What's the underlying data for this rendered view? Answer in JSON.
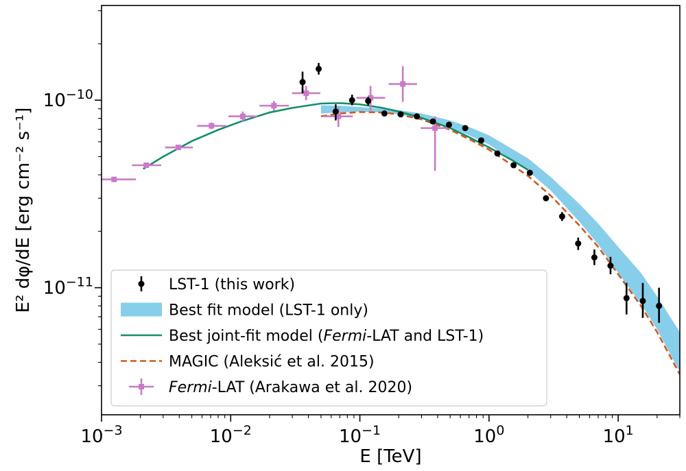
{
  "chart_data": {
    "type": "scatter",
    "x_scale": "log",
    "y_scale": "log",
    "xlim": [
      0.001,
      30
    ],
    "ylim": [
      2.1e-12,
      3.2e-10
    ],
    "xlabel": "E [TeV]",
    "ylabel": "E² dφ/dE [erg cm⁻² s⁻¹]",
    "x_ticks": [
      {
        "value": 0.001,
        "base": "10",
        "exp": "−3"
      },
      {
        "value": 0.01,
        "base": "10",
        "exp": "−2"
      },
      {
        "value": 0.1,
        "base": "10",
        "exp": "−1"
      },
      {
        "value": 1,
        "base": "10",
        "exp": "0"
      },
      {
        "value": 10,
        "base": "10",
        "exp": "1"
      }
    ],
    "y_ticks": [
      {
        "value": 1e-11,
        "base": "10",
        "exp": "−11"
      },
      {
        "value": 1e-10,
        "base": "10",
        "exp": "−10"
      }
    ],
    "grid": false,
    "legend_position": "bottom-left",
    "legend": [
      {
        "key": "lst1",
        "parts": [
          {
            "text": "LST-1 (this work)",
            "italic": false
          }
        ]
      },
      {
        "key": "band",
        "parts": [
          {
            "text": "Best fit model (LST-1 only)",
            "italic": false
          }
        ]
      },
      {
        "key": "joint",
        "parts": [
          {
            "text": "Best joint-fit model (",
            "italic": false
          },
          {
            "text": "Fermi",
            "italic": true
          },
          {
            "text": "-LAT and LST-1)",
            "italic": false
          }
        ]
      },
      {
        "key": "magic",
        "parts": [
          {
            "text": "MAGIC (Aleksić et al. 2015)",
            "italic": false
          }
        ]
      },
      {
        "key": "fermi",
        "parts": [
          {
            "text": "Fermi",
            "italic": true
          },
          {
            "text": "-LAT (Arakawa et al. 2020)",
            "italic": false
          }
        ]
      }
    ],
    "colors": {
      "lst1": "#000000",
      "band": "#87ceeb",
      "joint": "#138d68",
      "magic": "#d05a1f",
      "fermi": "#c97bc7"
    },
    "series": [
      {
        "key": "lst1",
        "type": "errorbar",
        "points": [
          {
            "x": 0.036,
            "y": 1.25e-10,
            "ylo": 1.09e-10,
            "yhi": 1.42e-10
          },
          {
            "x": 0.048,
            "y": 1.47e-10,
            "ylo": 1.37e-10,
            "yhi": 1.58e-10
          },
          {
            "x": 0.065,
            "y": 8.7e-11,
            "ylo": 7.8e-11,
            "yhi": 9.5e-11
          },
          {
            "x": 0.087,
            "y": 1e-10,
            "ylo": 9.4e-11,
            "yhi": 1.07e-10
          },
          {
            "x": 0.116,
            "y": 9.9e-11,
            "ylo": 9.4e-11,
            "yhi": 1.04e-10
          },
          {
            "x": 0.155,
            "y": 8.5e-11,
            "ylo": 8.3e-11,
            "yhi": 8.7e-11
          },
          {
            "x": 0.207,
            "y": 8.4e-11,
            "ylo": 8.25e-11,
            "yhi": 8.55e-11
          },
          {
            "x": 0.276,
            "y": 8.2e-11,
            "ylo": 8.05e-11,
            "yhi": 8.35e-11
          },
          {
            "x": 0.368,
            "y": 7.7e-11,
            "ylo": 7.55e-11,
            "yhi": 7.85e-11
          },
          {
            "x": 0.49,
            "y": 7.4e-11,
            "ylo": 7.25e-11,
            "yhi": 7.55e-11
          },
          {
            "x": 0.654,
            "y": 7.1e-11,
            "ylo": 6.95e-11,
            "yhi": 7.25e-11
          },
          {
            "x": 0.87,
            "y": 6.1e-11,
            "ylo": 5.97e-11,
            "yhi": 6.23e-11
          },
          {
            "x": 1.16,
            "y": 5.2e-11,
            "ylo": 5.07e-11,
            "yhi": 5.33e-11
          },
          {
            "x": 1.55,
            "y": 4.5e-11,
            "ylo": 4.38e-11,
            "yhi": 4.62e-11
          },
          {
            "x": 2.07,
            "y": 4.1e-11,
            "ylo": 3.98e-11,
            "yhi": 4.22e-11
          },
          {
            "x": 2.76,
            "y": 3e-11,
            "ylo": 2.9e-11,
            "yhi": 3.1e-11
          },
          {
            "x": 3.68,
            "y": 2.4e-11,
            "ylo": 2.27e-11,
            "yhi": 2.53e-11
          },
          {
            "x": 4.9,
            "y": 1.72e-11,
            "ylo": 1.59e-11,
            "yhi": 1.85e-11
          },
          {
            "x": 6.54,
            "y": 1.45e-11,
            "ylo": 1.32e-11,
            "yhi": 1.6e-11
          },
          {
            "x": 8.72,
            "y": 1.31e-11,
            "ylo": 1.18e-11,
            "yhi": 1.46e-11
          },
          {
            "x": 11.6,
            "y": 8.8e-12,
            "ylo": 7.2e-12,
            "yhi": 1.06e-11
          },
          {
            "x": 15.5,
            "y": 8.5e-12,
            "ylo": 6.9e-12,
            "yhi": 1.06e-11
          },
          {
            "x": 20.7,
            "y": 8e-12,
            "ylo": 6.5e-12,
            "yhi": 1e-11
          }
        ]
      },
      {
        "key": "fermi",
        "type": "errorbar-xy",
        "points": [
          {
            "x": 0.00125,
            "y": 3.78e-11,
            "xlo": 0.001,
            "xhi": 0.00185,
            "ylo": 3.7e-11,
            "yhi": 3.86e-11
          },
          {
            "x": 0.00222,
            "y": 4.5e-11,
            "xlo": 0.00172,
            "xhi": 0.0029,
            "ylo": 4.38e-11,
            "yhi": 4.62e-11
          },
          {
            "x": 0.00393,
            "y": 5.6e-11,
            "xlo": 0.0031,
            "xhi": 0.0051,
            "ylo": 5.45e-11,
            "yhi": 5.75e-11
          },
          {
            "x": 0.0071,
            "y": 7.3e-11,
            "xlo": 0.0055,
            "xhi": 0.0092,
            "ylo": 7e-11,
            "yhi": 7.6e-11
          },
          {
            "x": 0.0124,
            "y": 8.2e-11,
            "xlo": 0.0096,
            "xhi": 0.016,
            "ylo": 7.7e-11,
            "yhi": 8.7e-11
          },
          {
            "x": 0.0216,
            "y": 9.35e-11,
            "xlo": 0.0167,
            "xhi": 0.0282,
            "ylo": 8.8e-11,
            "yhi": 9.9e-11
          },
          {
            "x": 0.0384,
            "y": 1.09e-10,
            "xlo": 0.0298,
            "xhi": 0.0495,
            "ylo": 1e-10,
            "yhi": 1.19e-10
          },
          {
            "x": 0.0682,
            "y": 8.2e-11,
            "xlo": 0.053,
            "xhi": 0.088,
            "ylo": 7.2e-11,
            "yhi": 9.2e-11
          },
          {
            "x": 0.121,
            "y": 1.03e-10,
            "xlo": 0.094,
            "xhi": 0.157,
            "ylo": 8.8e-11,
            "yhi": 1.19e-10
          },
          {
            "x": 0.215,
            "y": 1.22e-10,
            "xlo": 0.167,
            "xhi": 0.277,
            "ylo": 9.8e-11,
            "yhi": 1.52e-10
          },
          {
            "x": 0.382,
            "y": 7.1e-11,
            "xlo": 0.296,
            "xhi": 0.492,
            "ylo": 4.2e-11,
            "yhi": 8.2e-11
          }
        ]
      },
      {
        "key": "joint",
        "type": "line",
        "x": [
          0.0021,
          0.003,
          0.005,
          0.008,
          0.012,
          0.02,
          0.03,
          0.05,
          0.07,
          0.1,
          0.15,
          0.2,
          0.3,
          0.5,
          0.7,
          1.0,
          1.5,
          2.0
        ],
        "y": [
          4.3e-11,
          5e-11,
          6.05e-11,
          6.95e-11,
          7.7e-11,
          8.6e-11,
          9.1e-11,
          9.6e-11,
          9.65e-11,
          9.5e-11,
          9.1e-11,
          8.7e-11,
          8.05e-11,
          7.1e-11,
          6.35e-11,
          5.6e-11,
          4.8e-11,
          4.25e-11
        ]
      },
      {
        "key": "magic",
        "type": "dashed-line",
        "x": [
          0.05,
          0.07,
          0.1,
          0.15,
          0.2,
          0.3,
          0.5,
          0.7,
          1.0,
          2.0,
          3.0,
          5.0,
          7.0,
          10.0,
          15.0,
          20.0,
          30.0
        ],
        "y": [
          8.2e-11,
          8.5e-11,
          8.65e-11,
          8.6e-11,
          8.4e-11,
          7.9e-11,
          6.95e-11,
          6.2e-11,
          5.45e-11,
          3.95e-11,
          3.1e-11,
          2.15e-11,
          1.65e-11,
          1.18e-11,
          8e-12,
          5.8e-12,
          3.45e-12
        ]
      },
      {
        "key": "band",
        "type": "band",
        "x": [
          0.05,
          0.07,
          0.1,
          0.15,
          0.2,
          0.3,
          0.5,
          0.7,
          1.0,
          2.0,
          3.0,
          5.0,
          7.0,
          10.0,
          15.0,
          20.0,
          30.0
        ],
        "lower": [
          8.5e-11,
          8.6e-11,
          8.7e-11,
          8.6e-11,
          8.4e-11,
          8e-11,
          7.15e-11,
          6.5e-11,
          5.8e-11,
          4.2e-11,
          3.3e-11,
          2.25e-11,
          1.7e-11,
          1.2e-11,
          8.2e-12,
          6e-12,
          3.55e-12
        ],
        "upper": [
          9.4e-11,
          9.35e-11,
          9.2e-11,
          9e-11,
          8.85e-11,
          8.5e-11,
          7.8e-11,
          7.2e-11,
          6.5e-11,
          4.9e-11,
          3.9e-11,
          2.8e-11,
          2.2e-11,
          1.65e-11,
          1.2e-11,
          9e-12,
          5.8e-12
        ]
      }
    ]
  }
}
